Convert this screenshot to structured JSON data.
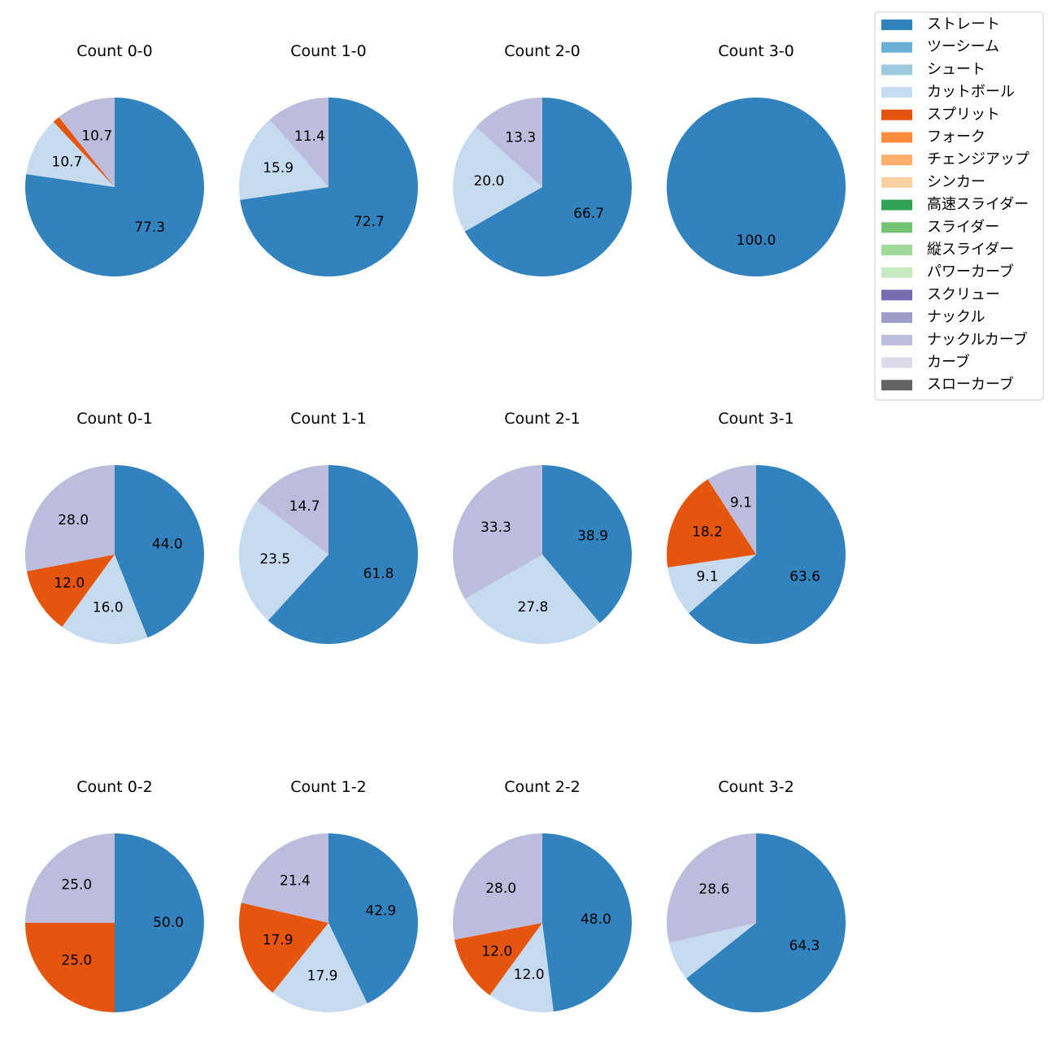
{
  "legend": {
    "title": "",
    "placement": "upper-right-outside",
    "items": [
      {
        "label": "ストレート",
        "color": "#3182bd"
      },
      {
        "label": "ツーシーム",
        "color": "#6baed6"
      },
      {
        "label": "シュート",
        "color": "#9ecae1"
      },
      {
        "label": "カットボール",
        "color": "#c6dbef"
      },
      {
        "label": "スプリット",
        "color": "#e6550d"
      },
      {
        "label": "フォーク",
        "color": "#fd8d3c"
      },
      {
        "label": "チェンジアップ",
        "color": "#fdae6b"
      },
      {
        "label": "シンカー",
        "color": "#fdd0a2"
      },
      {
        "label": "高速スライダー",
        "color": "#31a354"
      },
      {
        "label": "スライダー",
        "color": "#74c476"
      },
      {
        "label": "縦スライダー",
        "color": "#a1d99b"
      },
      {
        "label": "パワーカーブ",
        "color": "#c7e9c0"
      },
      {
        "label": "スクリュー",
        "color": "#756bb1"
      },
      {
        "label": "ナックル",
        "color": "#9e9ac8"
      },
      {
        "label": "ナックルカーブ",
        "color": "#bcbddc"
      },
      {
        "label": "カーブ",
        "color": "#dadaeb"
      },
      {
        "label": "スローカーブ",
        "color": "#636363"
      }
    ]
  },
  "chart_data": [
    {
      "type": "pie",
      "title": "Count 0-0",
      "start_angle": 90,
      "direction": "clockwise",
      "slices": [
        {
          "label": "ストレート",
          "value": 77.3,
          "text": "77.3"
        },
        {
          "label": "カットボール",
          "value": 10.7,
          "text": "10.7"
        },
        {
          "label": "スプリット",
          "value": 1.3,
          "text": ""
        },
        {
          "label": "ナックルカーブ",
          "value": 10.7,
          "text": "10.7"
        }
      ]
    },
    {
      "type": "pie",
      "title": "Count 1-0",
      "start_angle": 90,
      "direction": "clockwise",
      "slices": [
        {
          "label": "ストレート",
          "value": 72.7,
          "text": "72.7"
        },
        {
          "label": "カットボール",
          "value": 15.9,
          "text": "15.9"
        },
        {
          "label": "ナックルカーブ",
          "value": 11.4,
          "text": "11.4"
        }
      ]
    },
    {
      "type": "pie",
      "title": "Count 2-0",
      "start_angle": 90,
      "direction": "clockwise",
      "slices": [
        {
          "label": "ストレート",
          "value": 66.7,
          "text": "66.7"
        },
        {
          "label": "カットボール",
          "value": 20.0,
          "text": "20.0"
        },
        {
          "label": "ナックルカーブ",
          "value": 13.3,
          "text": "13.3"
        }
      ]
    },
    {
      "type": "pie",
      "title": "Count 3-0",
      "start_angle": 90,
      "direction": "clockwise",
      "slices": [
        {
          "label": "ストレート",
          "value": 100.0,
          "text": "100.0"
        }
      ]
    },
    {
      "type": "pie",
      "title": "Count 0-1",
      "start_angle": 90,
      "direction": "clockwise",
      "slices": [
        {
          "label": "ストレート",
          "value": 44.0,
          "text": "44.0"
        },
        {
          "label": "カットボール",
          "value": 16.0,
          "text": "16.0"
        },
        {
          "label": "スプリット",
          "value": 12.0,
          "text": "12.0"
        },
        {
          "label": "ナックルカーブ",
          "value": 28.0,
          "text": "28.0"
        }
      ]
    },
    {
      "type": "pie",
      "title": "Count 1-1",
      "start_angle": 90,
      "direction": "clockwise",
      "slices": [
        {
          "label": "ストレート",
          "value": 61.8,
          "text": "61.8"
        },
        {
          "label": "カットボール",
          "value": 23.5,
          "text": "23.5"
        },
        {
          "label": "ナックルカーブ",
          "value": 14.7,
          "text": "14.7"
        }
      ]
    },
    {
      "type": "pie",
      "title": "Count 2-1",
      "start_angle": 90,
      "direction": "clockwise",
      "slices": [
        {
          "label": "ストレート",
          "value": 38.9,
          "text": "38.9"
        },
        {
          "label": "カットボール",
          "value": 27.8,
          "text": "27.8"
        },
        {
          "label": "ナックルカーブ",
          "value": 33.3,
          "text": "33.3"
        }
      ]
    },
    {
      "type": "pie",
      "title": "Count 3-1",
      "start_angle": 90,
      "direction": "clockwise",
      "slices": [
        {
          "label": "ストレート",
          "value": 63.6,
          "text": "63.6"
        },
        {
          "label": "カットボール",
          "value": 9.1,
          "text": "9.1"
        },
        {
          "label": "スプリット",
          "value": 18.2,
          "text": "18.2"
        },
        {
          "label": "ナックルカーブ",
          "value": 9.1,
          "text": "9.1"
        }
      ]
    },
    {
      "type": "pie",
      "title": "Count 0-2",
      "start_angle": 90,
      "direction": "clockwise",
      "slices": [
        {
          "label": "ストレート",
          "value": 50.0,
          "text": "50.0"
        },
        {
          "label": "スプリット",
          "value": 25.0,
          "text": "25.0"
        },
        {
          "label": "ナックルカーブ",
          "value": 25.0,
          "text": "25.0"
        }
      ]
    },
    {
      "type": "pie",
      "title": "Count 1-2",
      "start_angle": 90,
      "direction": "clockwise",
      "slices": [
        {
          "label": "ストレート",
          "value": 42.9,
          "text": "42.9"
        },
        {
          "label": "カットボール",
          "value": 17.9,
          "text": "17.9"
        },
        {
          "label": "スプリット",
          "value": 17.9,
          "text": "17.9"
        },
        {
          "label": "ナックルカーブ",
          "value": 21.4,
          "text": "21.4"
        }
      ]
    },
    {
      "type": "pie",
      "title": "Count 2-2",
      "start_angle": 90,
      "direction": "clockwise",
      "slices": [
        {
          "label": "ストレート",
          "value": 48.0,
          "text": "48.0"
        },
        {
          "label": "カットボール",
          "value": 12.0,
          "text": "12.0"
        },
        {
          "label": "スプリット",
          "value": 12.0,
          "text": "12.0"
        },
        {
          "label": "ナックルカーブ",
          "value": 28.0,
          "text": "28.0"
        }
      ]
    },
    {
      "type": "pie",
      "title": "Count 3-2",
      "start_angle": 90,
      "direction": "clockwise",
      "slices": [
        {
          "label": "ストレート",
          "value": 64.3,
          "text": "64.3"
        },
        {
          "label": "カットボール",
          "value": 7.1,
          "text": ""
        },
        {
          "label": "ナックルカーブ",
          "value": 28.6,
          "text": "28.6"
        }
      ]
    }
  ]
}
